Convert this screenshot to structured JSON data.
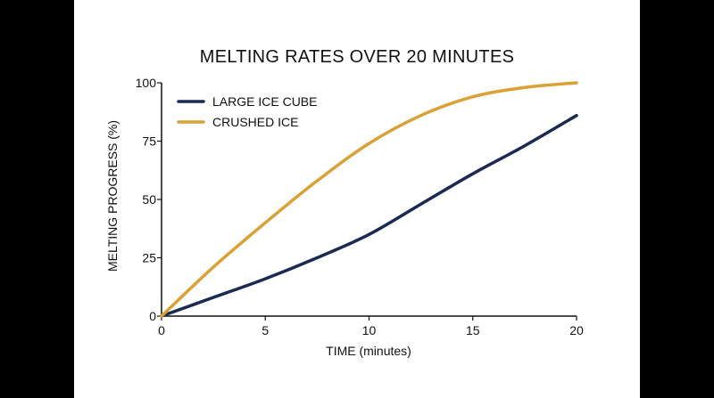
{
  "chart_data": {
    "type": "line",
    "title": "MELTING RATES OVER 20 MINUTES",
    "xlabel": "TIME (minutes)",
    "ylabel": "MELTING PROGRESS (%)",
    "xlim": [
      0,
      20
    ],
    "ylim": [
      0,
      100
    ],
    "x_ticks": [
      0,
      5,
      10,
      15,
      20
    ],
    "y_ticks": [
      0,
      25,
      50,
      75,
      100
    ],
    "grid": false,
    "legend_position": "top-left",
    "x": [
      0,
      2.5,
      5,
      7.5,
      10,
      12.5,
      15,
      17.5,
      20
    ],
    "series": [
      {
        "name": "LARGE ICE CUBE",
        "color": "#1b2a52",
        "values": [
          0,
          8,
          16,
          25,
          35,
          48,
          61,
          73,
          86
        ]
      },
      {
        "name": "CRUSHED ICE",
        "color": "#d9a136",
        "values": [
          0,
          21,
          40,
          58,
          74,
          86,
          94,
          98,
          100
        ]
      }
    ]
  }
}
